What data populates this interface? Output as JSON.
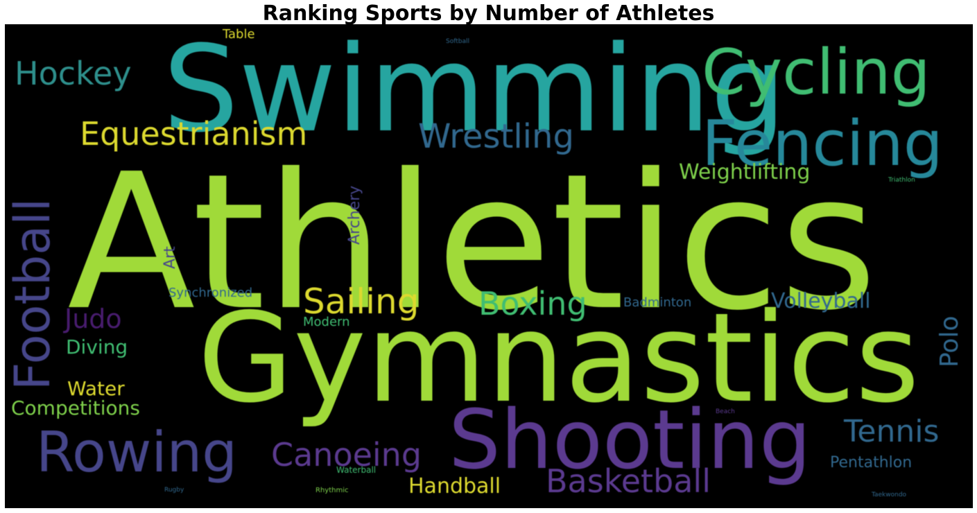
{
  "title": "Ranking Sports by Number of Athletes",
  "palette": {
    "lime": "#a0da39",
    "teal": "#26a5a0",
    "green": "#40bd72",
    "yellow": "#dcd92f",
    "blue_steel": "#31688e",
    "indigo": "#46468a",
    "purple": "#5b3a8f",
    "violet": "#481c6e"
  },
  "words": [
    {
      "text": "Athletics",
      "color": "#a0da39"
    },
    {
      "text": "Swimming",
      "color": "#26a5a0"
    },
    {
      "text": "Gymnastics",
      "color": "#a0da39"
    },
    {
      "text": "Shooting",
      "color": "#5b3a8f"
    },
    {
      "text": "Cycling",
      "color": "#40bd72"
    },
    {
      "text": "Fencing",
      "color": "#26889a"
    },
    {
      "text": "Rowing",
      "color": "#46468a"
    },
    {
      "text": "Football",
      "color": "#46468a"
    },
    {
      "text": "Equestrianism",
      "color": "#dcd92f"
    },
    {
      "text": "Wrestling",
      "color": "#31688e"
    },
    {
      "text": "Hockey",
      "color": "#2e8f8c"
    },
    {
      "text": "Sailing",
      "color": "#dcd92f"
    },
    {
      "text": "Boxing",
      "color": "#40bd72"
    },
    {
      "text": "Canoeing",
      "color": "#5b3a8f"
    },
    {
      "text": "Basketball",
      "color": "#5b3a8f"
    },
    {
      "text": "Tennis",
      "color": "#31688e"
    },
    {
      "text": "Weightlifting",
      "color": "#7ed04b"
    },
    {
      "text": "Judo",
      "color": "#481c6e"
    },
    {
      "text": "Volleyball",
      "color": "#31688e"
    },
    {
      "text": "Polo",
      "color": "#31688e"
    },
    {
      "text": "Handball",
      "color": "#dcd92f"
    },
    {
      "text": "Water",
      "color": "#dcd92f"
    },
    {
      "text": "Diving",
      "color": "#40bd72"
    },
    {
      "text": "Competitions",
      "color": "#7ed04b"
    },
    {
      "text": "Pentathlon",
      "color": "#31688e"
    },
    {
      "text": "Art",
      "color": "#46468a"
    },
    {
      "text": "Archery",
      "color": "#46468a"
    },
    {
      "text": "Synchronized",
      "color": "#31688e"
    },
    {
      "text": "Modern",
      "color": "#40bd72"
    },
    {
      "text": "Badminton",
      "color": "#31688e"
    },
    {
      "text": "Table",
      "color": "#dcd92f"
    },
    {
      "text": "Softball",
      "color": "#31688e"
    },
    {
      "text": "Triathlon",
      "color": "#40bd72"
    },
    {
      "text": "Waterball",
      "color": "#40bd72"
    },
    {
      "text": "Rhythmic",
      "color": "#7ed04b"
    },
    {
      "text": "Rugby",
      "color": "#31688e"
    },
    {
      "text": "Beach",
      "color": "#5b3a8f"
    },
    {
      "text": "Taekwondo",
      "color": "#31688e"
    }
  ]
}
